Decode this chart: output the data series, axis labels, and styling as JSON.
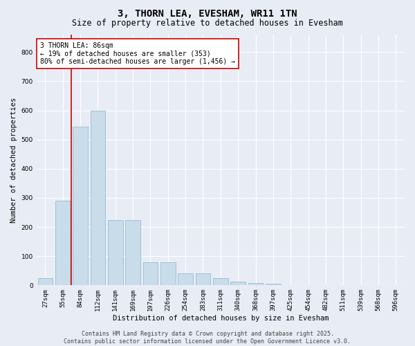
{
  "title": "3, THORN LEA, EVESHAM, WR11 1TN",
  "subtitle": "Size of property relative to detached houses in Evesham",
  "xlabel": "Distribution of detached houses by size in Evesham",
  "ylabel": "Number of detached properties",
  "categories": [
    "27sqm",
    "55sqm",
    "84sqm",
    "112sqm",
    "141sqm",
    "169sqm",
    "197sqm",
    "226sqm",
    "254sqm",
    "283sqm",
    "311sqm",
    "340sqm",
    "368sqm",
    "397sqm",
    "425sqm",
    "454sqm",
    "482sqm",
    "511sqm",
    "539sqm",
    "568sqm",
    "596sqm"
  ],
  "values": [
    25,
    290,
    545,
    600,
    225,
    225,
    80,
    80,
    40,
    40,
    25,
    12,
    8,
    5,
    0,
    0,
    0,
    0,
    0,
    0,
    0
  ],
  "bar_color": "#c9dcea",
  "bar_edge_color": "#8ab4cc",
  "vline_x_index": 2,
  "vline_color": "#cc0000",
  "annotation_text": "3 THORN LEA: 86sqm\n← 19% of detached houses are smaller (353)\n80% of semi-detached houses are larger (1,456) →",
  "annotation_box_color": "#ffffff",
  "annotation_box_edge_color": "#cc0000",
  "ylim": [
    0,
    860
  ],
  "yticks": [
    0,
    100,
    200,
    300,
    400,
    500,
    600,
    700,
    800
  ],
  "background_color": "#e8edf5",
  "plot_bg_color": "#e8edf5",
  "grid_color": "#ffffff",
  "footer_text": "Contains HM Land Registry data © Crown copyright and database right 2025.\nContains public sector information licensed under the Open Government Licence v3.0.",
  "title_fontsize": 10,
  "subtitle_fontsize": 8.5,
  "axis_label_fontsize": 7.5,
  "tick_fontsize": 6.5,
  "annotation_fontsize": 7,
  "footer_fontsize": 6
}
